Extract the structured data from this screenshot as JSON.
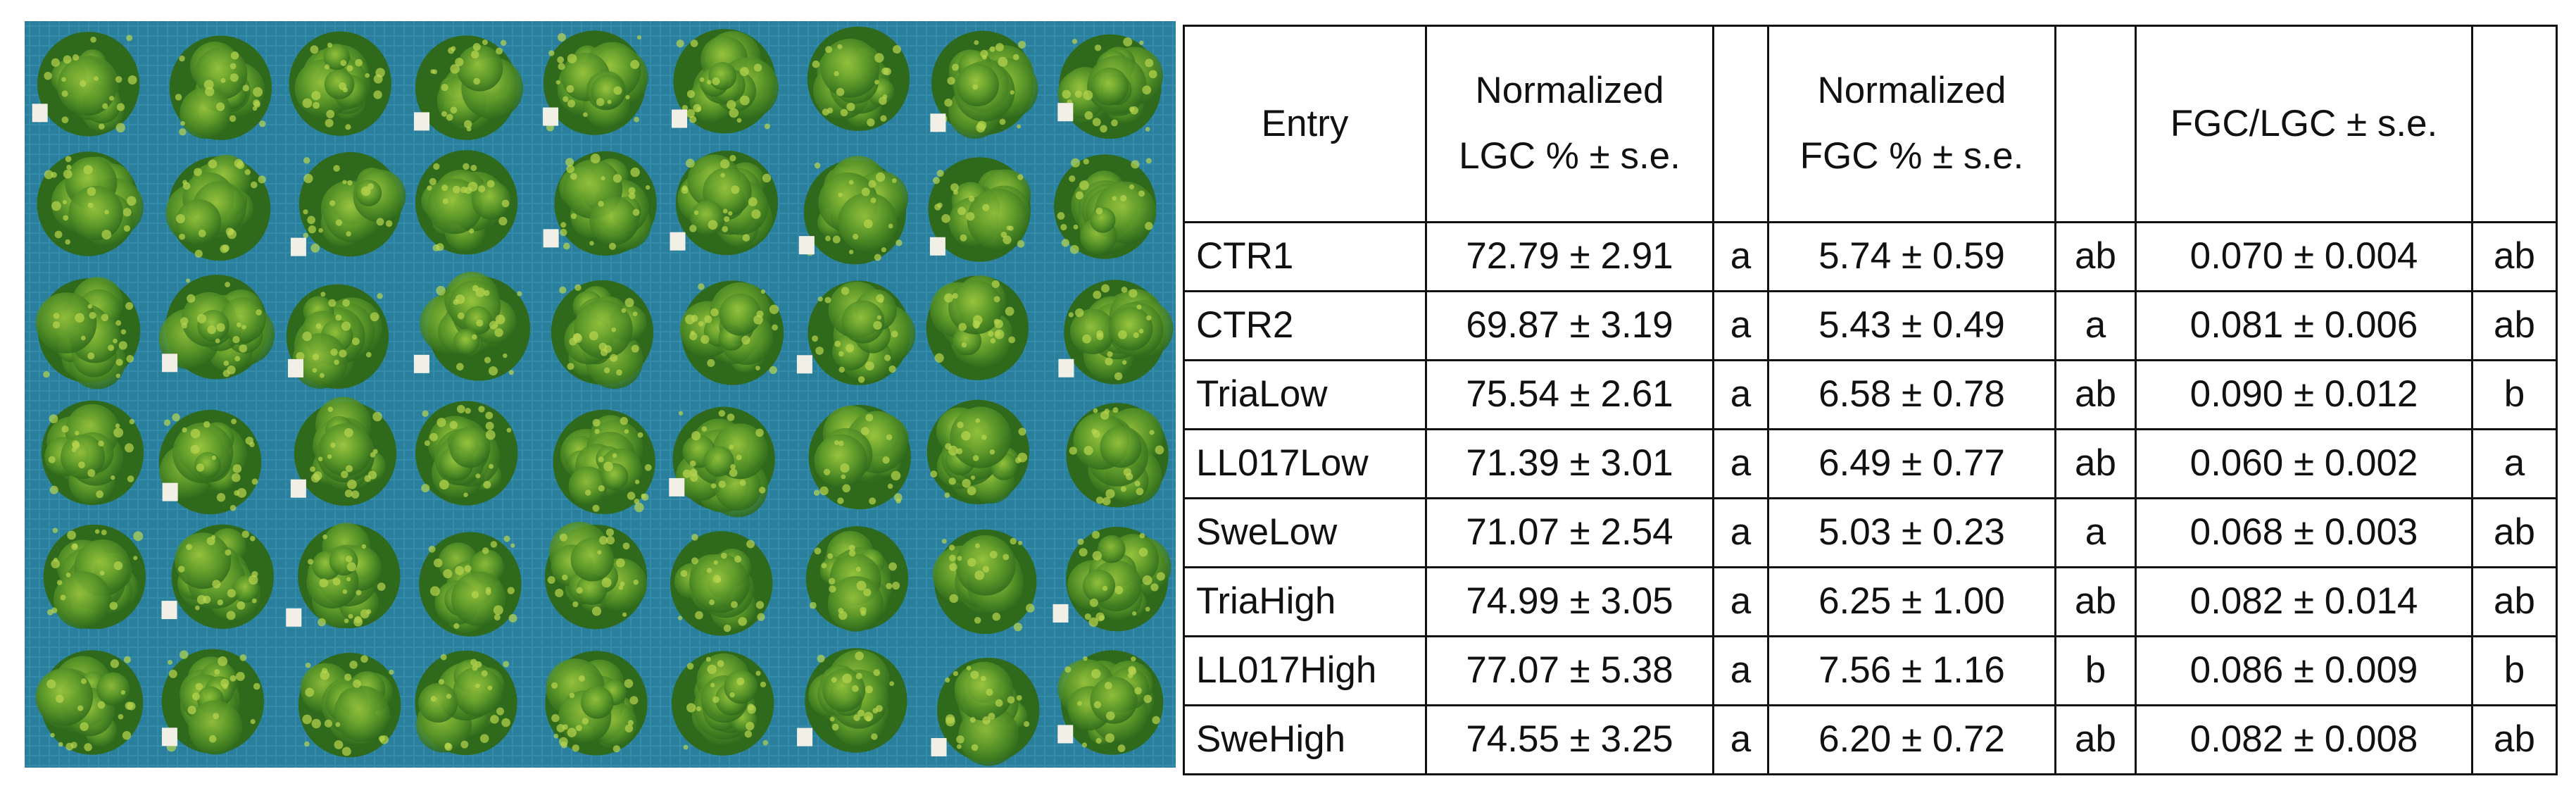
{
  "photo": {
    "alt_label": "aerial-field-plots-photo"
  },
  "table": {
    "headers": [
      "Entry",
      "Normalized LGC % ± s.e.",
      "",
      "Normalized FGC % ± s.e.",
      "",
      "FGC/LGC ± s.e.",
      ""
    ],
    "rows": [
      [
        "CTR1",
        "72.79 ± 2.91",
        "a",
        "5.74 ± 0.59",
        "ab",
        "0.070 ± 0.004",
        "ab"
      ],
      [
        "CTR2",
        "69.87 ± 3.19",
        "a",
        "5.43 ± 0.49",
        "a",
        "0.081 ± 0.006",
        "ab"
      ],
      [
        "TriaLow",
        "75.54 ± 2.61",
        "a",
        "6.58 ± 0.78",
        "ab",
        "0.090 ± 0.012",
        "b"
      ],
      [
        "LL017Low",
        "71.39 ± 3.01",
        "a",
        "6.49 ± 0.77",
        "ab",
        "0.060 ± 0.002",
        "a"
      ],
      [
        "SweLow",
        "71.07 ± 2.54",
        "a",
        "5.03 ± 0.23",
        "a",
        "0.068 ± 0.003",
        "ab"
      ],
      [
        "TriaHigh",
        "74.99 ± 3.05",
        "a",
        "6.25 ± 1.00",
        "ab",
        "0.082 ± 0.014",
        "ab"
      ],
      [
        "LL017High",
        "77.07 ± 5.38",
        "a",
        "7.56 ± 1.16",
        "b",
        "0.086 ± 0.009",
        "b"
      ],
      [
        "SweHigh",
        "74.55 ± 3.25",
        "a",
        "6.20 ± 0.72",
        "ab",
        "0.082 ± 0.008",
        "ab"
      ]
    ]
  },
  "colors": {
    "tarp_blue": "#2a7f9c",
    "tarp_light": "#4aa6c4",
    "plant_dark": "#2f6a1c",
    "plant_mid": "#4f8f25",
    "plant_light": "#8fbd3a",
    "tag_white": "#f2efe6"
  }
}
